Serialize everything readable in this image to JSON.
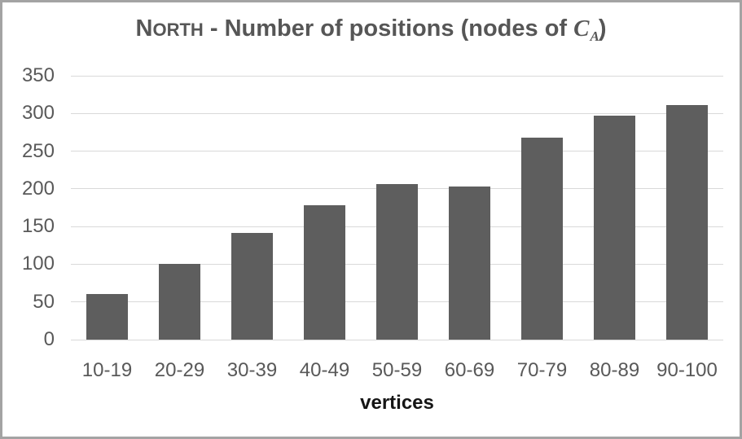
{
  "window": {
    "border_color": "#a3a3a3",
    "background_color": "#ffffff"
  },
  "title_parts": {
    "north_initial": "N",
    "north_rest": "ORTH",
    "separator": " - ",
    "main": "Number of positions (nodes of ",
    "math_var": "C",
    "math_sub": "A",
    "close": ")"
  },
  "chart_data": {
    "type": "bar",
    "title": "NORTH - Number of positions (nodes of C_A)",
    "categories": [
      "10-19",
      "20-29",
      "30-39",
      "40-49",
      "50-59",
      "60-69",
      "70-79",
      "80-89",
      "90-100"
    ],
    "values": [
      61,
      100,
      142,
      178,
      206,
      203,
      268,
      297,
      311
    ],
    "xlabel": "vertices",
    "ylabel": "",
    "ylim": [
      0,
      350
    ],
    "yticks": [
      0,
      50,
      100,
      150,
      200,
      250,
      300,
      350
    ],
    "grid": true,
    "legend": false,
    "bar_color": "#5e5e5e",
    "gridline_color": "#d9d9d9",
    "tick_label_color": "#595959",
    "title_color": "#565656",
    "xlabel_color": "#151515"
  }
}
